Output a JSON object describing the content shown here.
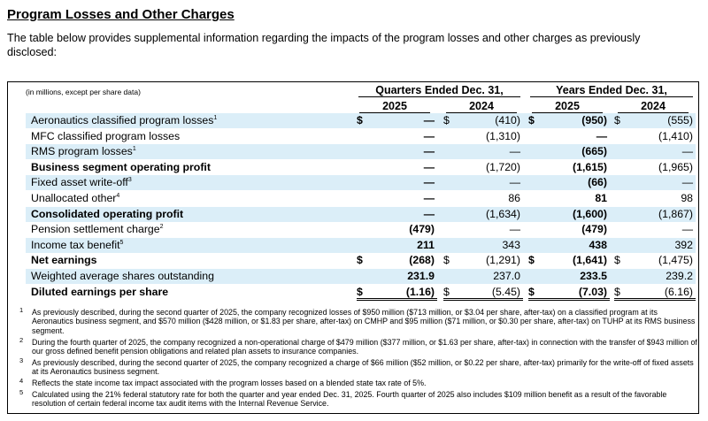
{
  "header": {
    "title": "Program Losses and Other Charges",
    "intro": "The table below provides supplemental information regarding the impacts of the program losses and other charges as previously disclosed:"
  },
  "table": {
    "unit_note": "(in millions, except per share data)",
    "group_headers": [
      "Quarters Ended Dec. 31,",
      "Years Ended Dec. 31,"
    ],
    "column_headers": [
      "2025",
      "2024",
      "2025",
      "2024"
    ],
    "currency_symbol": "$",
    "bold_columns": [
      0,
      2
    ],
    "rows": [
      {
        "label": "Aeronautics classified program losses",
        "sup": "1",
        "bold": false,
        "dollar": true,
        "cells": [
          "—",
          "(410)",
          "(950)",
          "(555)"
        ]
      },
      {
        "label": "MFC classified program losses",
        "bold": false,
        "dollar": false,
        "cells": [
          "—",
          "(1,310)",
          "—",
          "(1,410)"
        ]
      },
      {
        "label": "RMS program losses",
        "sup": "1",
        "bold": false,
        "dollar": false,
        "cells": [
          "—",
          "—",
          "(665)",
          "—"
        ]
      },
      {
        "label": "Business segment operating profit",
        "bold": true,
        "dollar": false,
        "cells": [
          "—",
          "(1,720)",
          "(1,615)",
          "(1,965)"
        ]
      },
      {
        "label": "Fixed asset write-off",
        "sup": "3",
        "bold": false,
        "dollar": false,
        "cells": [
          "—",
          "—",
          "(66)",
          "—"
        ]
      },
      {
        "label": "Unallocated other",
        "sup": "4",
        "bold": false,
        "dollar": false,
        "cells": [
          "—",
          "86",
          "81",
          "98"
        ]
      },
      {
        "label": "Consolidated operating profit",
        "bold": true,
        "dollar": false,
        "cells": [
          "—",
          "(1,634)",
          "(1,600)",
          "(1,867)"
        ]
      },
      {
        "label": "Pension settlement charge",
        "sup": "2",
        "bold": false,
        "dollar": false,
        "cells": [
          "(479)",
          "—",
          "(479)",
          "—"
        ]
      },
      {
        "label": "Income tax benefit",
        "sup": "5",
        "bold": false,
        "dollar": false,
        "cells": [
          "211",
          "343",
          "438",
          "392"
        ]
      },
      {
        "label": "Net earnings",
        "bold": true,
        "dollar": true,
        "cells": [
          "(268)",
          "(1,291)",
          "(1,641)",
          "(1,475)"
        ]
      },
      {
        "label": "Weighted average shares outstanding",
        "bold": false,
        "dollar": false,
        "cells": [
          "231.9",
          "237.0",
          "233.5",
          "239.2"
        ]
      },
      {
        "label": "Diluted earnings per share",
        "bold": true,
        "dollar": true,
        "cells": [
          "(1.16)",
          "(5.45)",
          "(7.03)",
          "(6.16)"
        ]
      }
    ]
  },
  "footnotes": [
    {
      "marker": "1",
      "text": "As previously described, during the second quarter of 2025, the company recognized losses of $950 million ($713 million, or $3.04 per share, after-tax) on a classified program at its Aeronautics business segment, and $570 million ($428 million, or $1.83 per share, after-tax) on CMHP and $95 million ($71 million, or $0.30 per share, after-tax) on TUHP at its RMS business segment."
    },
    {
      "marker": "2",
      "text": "During the fourth quarter of 2025, the company recognized a non-operational charge of $479 million ($377 million, or $1.63 per share, after-tax) in connection with the transfer of $943 million of our gross defined benefit pension obligations and related plan assets to insurance companies."
    },
    {
      "marker": "3",
      "text": "As previously described, during the second quarter of 2025, the company recognized a charge of $66 million ($52 million, or $0.22 per share, after-tax) primarily for the write-off of fixed assets at its Aeronautics business segment."
    },
    {
      "marker": "4",
      "text": "Reflects the state income tax impact associated with the program losses based on a blended state tax rate of 5%."
    },
    {
      "marker": "5",
      "text": "Calculated using the 21% federal statutory rate for both the quarter and year ended Dec. 31, 2025. Fourth quarter of 2025 also includes $109 million benefit as a result of the favorable resolution of certain federal income tax audit items with the Internal Revenue Service."
    }
  ]
}
